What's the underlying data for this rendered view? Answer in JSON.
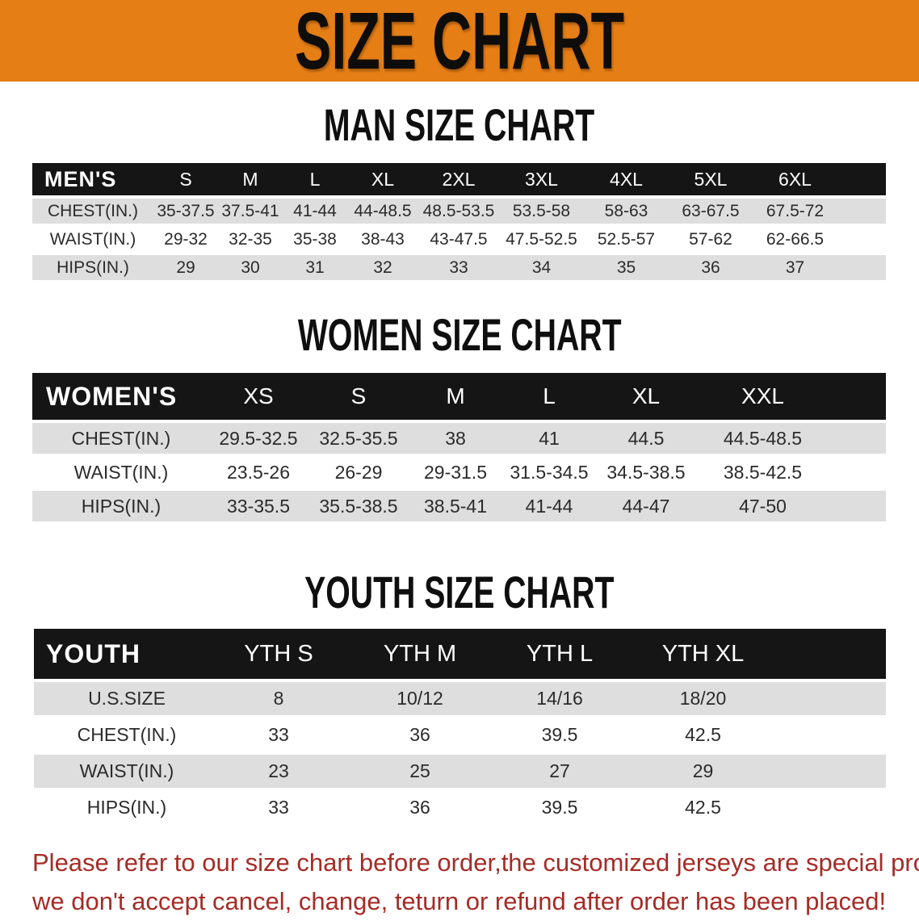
{
  "banner": {
    "title": "SIZE CHART",
    "bg_color": "#E67E16"
  },
  "colors": {
    "table_header_bg": "#151515",
    "row_stripe_gray": "#DEDEDE",
    "disclaimer_red": "#A62B26"
  },
  "mens": {
    "title": "MAN SIZE CHART",
    "header": [
      "MEN'S",
      "S",
      "M",
      "L",
      "XL",
      "2XL",
      "3XL",
      "4XL",
      "5XL",
      "6XL"
    ],
    "rows": [
      [
        "CHEST(IN.)",
        "35-37.5",
        "37.5-41",
        "41-44",
        "44-48.5",
        "48.5-53.5",
        "53.5-58",
        "58-63",
        "63-67.5",
        "67.5-72"
      ],
      [
        "WAIST(IN.)",
        "29-32",
        "32-35",
        "35-38",
        "38-43",
        "43-47.5",
        "47.5-52.5",
        "52.5-57",
        "57-62",
        "62-66.5"
      ],
      [
        "HIPS(IN.)",
        "29",
        "30",
        "31",
        "32",
        "33",
        "34",
        "35",
        "36",
        "37"
      ]
    ]
  },
  "womens": {
    "title": "WOMEN SIZE CHART",
    "header": [
      "WOMEN'S",
      "XS",
      "S",
      "M",
      "L",
      "XL",
      "XXL"
    ],
    "rows": [
      [
        "CHEST(IN.)",
        "29.5-32.5",
        "32.5-35.5",
        "38",
        "41",
        "44.5",
        "44.5-48.5"
      ],
      [
        "WAIST(IN.)",
        "23.5-26",
        "26-29",
        "29-31.5",
        "31.5-34.5",
        "34.5-38.5",
        "38.5-42.5"
      ],
      [
        "HIPS(IN.)",
        "33-35.5",
        "35.5-38.5",
        "38.5-41",
        "41-44",
        "44-47",
        "47-50"
      ]
    ]
  },
  "youth": {
    "title": "YOUTH SIZE CHART",
    "header": [
      "YOUTH",
      "YTH S",
      "YTH M",
      "YTH L",
      "YTH XL"
    ],
    "rows": [
      [
        "U.S.SIZE",
        "8",
        "10/12",
        "14/16",
        "18/20"
      ],
      [
        "CHEST(IN.)",
        "33",
        "36",
        "39.5",
        "42.5"
      ],
      [
        "WAIST(IN.)",
        "23",
        "25",
        "27",
        "29"
      ],
      [
        "HIPS(IN.)",
        "33",
        "36",
        "39.5",
        "42.5"
      ]
    ]
  },
  "disclaimer": {
    "line1": "Please refer to our size chart before order,the customized jerseys are special products,",
    "line2": "we don't accept cancel, change, teturn or refund after order has been placed!"
  }
}
